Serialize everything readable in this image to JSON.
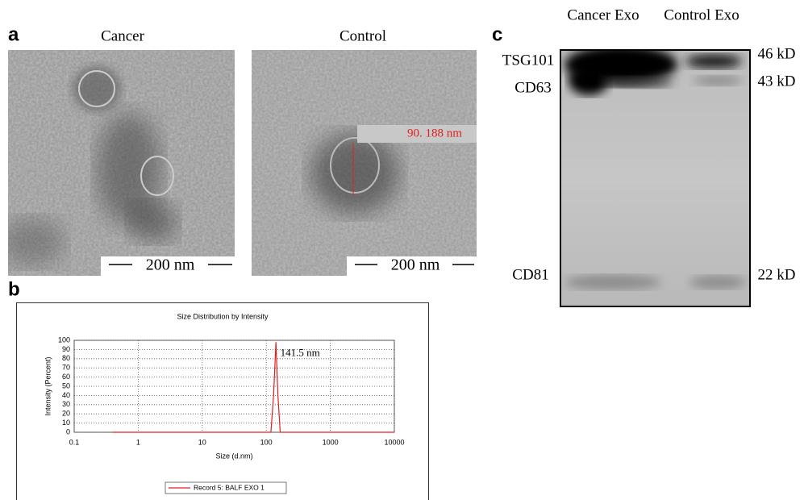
{
  "panel_labels": [
    "a",
    "b",
    "c"
  ],
  "tem_images": [
    {
      "title": "Cancer",
      "scale_bar": "200 nm"
    },
    {
      "title": "Control",
      "scale_bar": "200 nm",
      "measurement": "90. 188 nm"
    }
  ],
  "chart_data": {
    "type": "line",
    "title": "Size Distribution by Intensity",
    "x_label": "Size (d.nm)",
    "y_label": "Intensity (Percent)",
    "annotation": "141.5 nm",
    "x": [
      0.4,
      100,
      118,
      130,
      141.5,
      152,
      165,
      200,
      10000
    ],
    "series": [
      {
        "name": "Record 5: BALF EXO 1",
        "color": "#e02020",
        "values": [
          0,
          0,
          0,
          40,
          98,
          40,
          0,
          0,
          0
        ]
      }
    ],
    "xlim": [
      0.1,
      10000
    ],
    "xticks": [
      0.1,
      1,
      10,
      100,
      1000,
      10000
    ],
    "xscale": "log",
    "ylim": [
      0,
      100
    ],
    "yticks": [
      0,
      10,
      20,
      30,
      40,
      50,
      60,
      70,
      80,
      90,
      100
    ],
    "grid": true
  },
  "western_blot": {
    "lanes": [
      "Cancer Exo",
      "Control Exo"
    ],
    "bands": [
      {
        "label": "TSG101",
        "size": "46 kD"
      },
      {
        "label": "CD63",
        "size": "43 kD"
      },
      {
        "label": "CD81",
        "size": "22 kD"
      }
    ]
  }
}
